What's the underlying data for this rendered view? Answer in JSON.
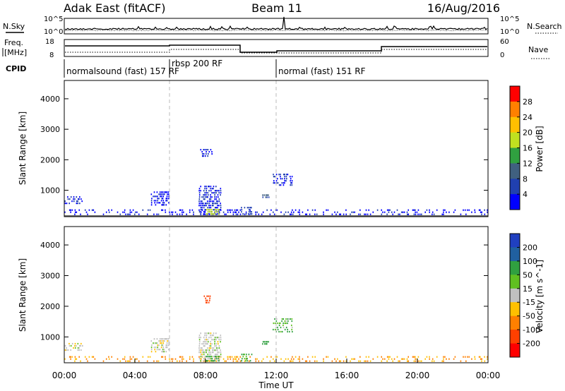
{
  "header": {
    "station": "Adak East (fitACF)",
    "beam": "Beam 11",
    "date": "16/Aug/2016"
  },
  "left_labels": {
    "nsky": "N.Sky",
    "freq_line1": "Freq.",
    "freq_line2": "[MHz]",
    "cpid": "CPID"
  },
  "right_labels": {
    "nsearch": "N.Search",
    "nave": "Nave"
  },
  "noise_panel": {
    "left_ticks": [
      "10^5",
      "10^0"
    ],
    "right_ticks": [
      "10^5",
      "10^0"
    ]
  },
  "freq_panel": {
    "left_ticks": [
      "18",
      "8"
    ],
    "right_ticks": [
      "60",
      "0"
    ]
  },
  "cpid_labels": [
    {
      "text": "normalsound (fast) 157 RF"
    },
    {
      "text": "rbsp 200 RF"
    },
    {
      "text": "normal (fast) 151 RF"
    }
  ],
  "colors": {
    "power": [
      "#0000ff",
      "#2040b0",
      "#406080",
      "#30a040",
      "#c0e020",
      "#ffc000",
      "#ff8000",
      "#ff0000"
    ],
    "velocity": [
      "#ff0000",
      "#ff4000",
      "#ff8000",
      "#ffc000",
      "#c0c0c0",
      "#60c020",
      "#30a040",
      "#2060a0",
      "#2040c0"
    ]
  },
  "chart_data": [
    {
      "type": "heatmap",
      "panel": "power",
      "ylabel": "Slant Range [km]",
      "ylim": [
        180,
        4600
      ],
      "yticks": [
        "1000",
        "2000",
        "3000",
        "4000"
      ],
      "xlim": [
        0,
        24
      ],
      "colorbar": {
        "label": "Power [dB]",
        "ticks": [
          "4",
          "8",
          "12",
          "16",
          "20",
          "24",
          "28"
        ],
        "range": [
          0,
          32
        ]
      },
      "vertical_markers": [
        6.0,
        12.0
      ],
      "clusters": [
        {
          "t0": 0.0,
          "t1": 24.0,
          "r0": 190,
          "r1": 380,
          "value": 3,
          "density": 0.25
        },
        {
          "t0": 4.9,
          "t1": 5.9,
          "r0": 500,
          "r1": 1000,
          "value": 3,
          "density": 0.55
        },
        {
          "t0": 7.6,
          "t1": 8.9,
          "r0": 200,
          "r1": 1200,
          "value": 4,
          "density": 0.6
        },
        {
          "t0": 8.0,
          "t1": 8.8,
          "r0": 200,
          "r1": 400,
          "value": 18,
          "density": 0.8
        },
        {
          "t0": 7.6,
          "t1": 8.4,
          "r0": 2100,
          "r1": 2350,
          "value": 4,
          "density": 0.5
        },
        {
          "t0": 10.0,
          "t1": 10.6,
          "r0": 200,
          "r1": 450,
          "value": 5,
          "density": 0.6
        },
        {
          "t0": 11.2,
          "t1": 11.6,
          "r0": 750,
          "r1": 900,
          "value": 9,
          "density": 0.9
        },
        {
          "t0": 11.8,
          "t1": 12.9,
          "r0": 1150,
          "r1": 1600,
          "value": 4,
          "density": 0.45
        },
        {
          "t0": 0.0,
          "t1": 1.0,
          "r0": 550,
          "r1": 800,
          "value": 4,
          "density": 0.3
        }
      ]
    },
    {
      "type": "heatmap",
      "panel": "velocity",
      "ylabel": "Slant Range [km]",
      "xlabel": "Time UT",
      "ylim": [
        180,
        4600
      ],
      "yticks": [
        "1000",
        "2000",
        "3000",
        "4000"
      ],
      "xlim": [
        0,
        24
      ],
      "xticks": [
        "00:00",
        "04:00",
        "08:00",
        "12:00",
        "16:00",
        "20:00",
        "00:00"
      ],
      "colorbar": {
        "label": "Velocity [m s^-1]",
        "ticks": [
          "200",
          "100",
          "50",
          "15",
          "-15",
          "-50",
          "-100",
          "-200"
        ]
      },
      "vertical_markers": [
        6.0,
        12.0
      ],
      "clusters": [
        {
          "t0": 0.0,
          "t1": 24.0,
          "r0": 190,
          "r1": 380,
          "value": "-50",
          "density": 0.25
        },
        {
          "t0": 4.9,
          "t1": 5.9,
          "r0": 500,
          "r1": 1000,
          "value": "0",
          "density": 0.55
        },
        {
          "t0": 7.6,
          "t1": 8.9,
          "r0": 200,
          "r1": 1200,
          "value": "0",
          "density": 0.6
        },
        {
          "t0": 8.0,
          "t1": 8.8,
          "r0": 200,
          "r1": 400,
          "value": "30",
          "density": 0.8
        },
        {
          "t0": 7.8,
          "t1": 8.3,
          "r0": 2100,
          "r1": 2350,
          "value": "-150",
          "density": 0.5
        },
        {
          "t0": 10.0,
          "t1": 10.6,
          "r0": 200,
          "r1": 450,
          "value": "30",
          "density": 0.6
        },
        {
          "t0": 11.2,
          "t1": 11.6,
          "r0": 750,
          "r1": 900,
          "value": "30",
          "density": 0.9
        },
        {
          "t0": 11.8,
          "t1": 12.9,
          "r0": 1150,
          "r1": 1600,
          "value": "30",
          "density": 0.45
        },
        {
          "t0": 0.0,
          "t1": 1.0,
          "r0": 550,
          "r1": 800,
          "value": "0",
          "density": 0.3
        }
      ]
    }
  ]
}
